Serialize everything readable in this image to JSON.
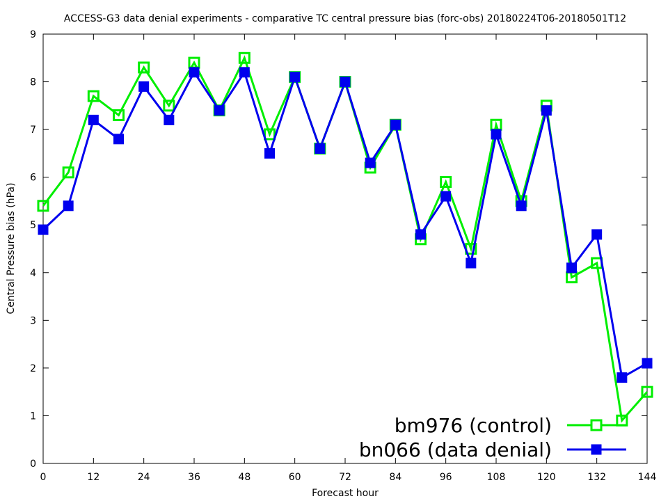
{
  "chart_data": {
    "type": "line",
    "title": "ACCESS-G3 data denial experiments - comparative TC central pressure bias (forc-obs) 20180224T06-20180501T12",
    "xlabel": "Forecast hour",
    "ylabel": "Central Pressure bias (hPa)",
    "xlim": [
      0,
      144
    ],
    "ylim": [
      0,
      9
    ],
    "xticks": [
      0,
      12,
      24,
      36,
      48,
      60,
      72,
      84,
      96,
      108,
      120,
      132,
      144
    ],
    "yticks": [
      0,
      1,
      2,
      3,
      4,
      5,
      6,
      7,
      8,
      9
    ],
    "grid": false,
    "legend_position": "bottom-right",
    "x": [
      0,
      6,
      12,
      18,
      24,
      30,
      36,
      42,
      48,
      54,
      60,
      66,
      72,
      78,
      84,
      90,
      96,
      102,
      108,
      114,
      120,
      126,
      132,
      138,
      144
    ],
    "series": [
      {
        "name": "bm976 (control)",
        "color": "#00ee00",
        "marker": "open-square",
        "values": [
          5.4,
          6.1,
          7.7,
          7.3,
          8.3,
          7.5,
          8.4,
          7.4,
          8.5,
          6.9,
          8.1,
          6.6,
          8.0,
          6.2,
          7.1,
          4.7,
          5.9,
          4.5,
          7.1,
          5.5,
          7.5,
          3.9,
          4.2,
          0.9,
          1.5
        ]
      },
      {
        "name": "bn066 (data denial)",
        "color": "#0000ee",
        "marker": "filled-square",
        "values": [
          4.9,
          5.4,
          7.2,
          6.8,
          7.9,
          7.2,
          8.2,
          7.4,
          8.2,
          6.5,
          8.1,
          6.6,
          8.0,
          6.3,
          7.1,
          4.8,
          5.6,
          4.2,
          6.9,
          5.4,
          7.4,
          4.1,
          4.8,
          1.8,
          2.1
        ]
      }
    ]
  }
}
